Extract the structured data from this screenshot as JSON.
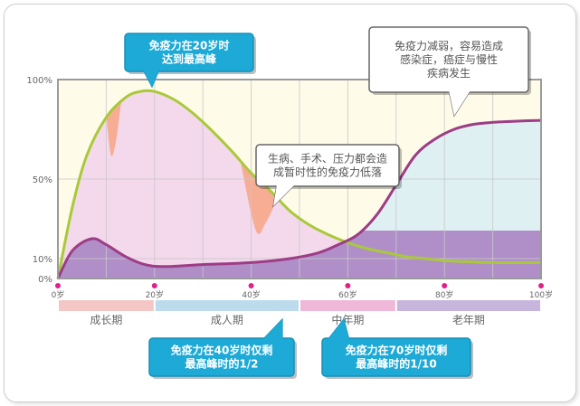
{
  "colors": {
    "green_curve": "#a9c93a",
    "purple_curve": "#9c3d86",
    "purple_fill": "#b08fc9",
    "pink_fill": "#f3d6ec",
    "teal_fill": "#dff0f2",
    "yellow_bg": "#fffbe9",
    "orange_spike": "#f6a989",
    "blue_callout": "#1eaad6",
    "grid": "#c9c9c9",
    "axis": "#888888"
  },
  "chart_data": {
    "type": "line",
    "x_ticks": [
      "0岁",
      "20岁",
      "40岁",
      "60岁",
      "80岁",
      "100岁"
    ],
    "y_ticks": [
      "0%",
      "10%",
      "50%",
      "100%"
    ],
    "xlim": [
      0,
      100
    ],
    "ylim": [
      0,
      100
    ],
    "series": [
      {
        "color_key": "green_curve",
        "x": [
          0,
          3,
          6,
          10,
          14,
          17,
          20,
          24,
          28,
          32,
          36,
          40,
          44,
          48,
          52,
          56,
          60,
          64,
          68,
          72,
          76,
          80,
          84,
          90,
          96,
          100
        ],
        "values": [
          0,
          36,
          62,
          81,
          91,
          94,
          94,
          90,
          83,
          74,
          64,
          53,
          44,
          34,
          27,
          22,
          18,
          15,
          13,
          11,
          10,
          9,
          8.5,
          8,
          8,
          8
        ]
      },
      {
        "color_key": "purple_curve",
        "x": [
          0,
          3,
          7,
          10,
          14,
          18,
          22,
          30,
          40,
          48,
          54,
          58,
          62,
          66,
          70,
          74,
          78,
          82,
          86,
          90,
          94,
          100
        ],
        "values": [
          0,
          14,
          20,
          17,
          11,
          7,
          6,
          7,
          8,
          10,
          13,
          17,
          22,
          32,
          47,
          62,
          70,
          75,
          77.5,
          78.5,
          79,
          79.5
        ]
      }
    ],
    "spikes": [
      {
        "x": [
          10,
          11,
          12,
          13
        ],
        "values": [
          82,
          62,
          69,
          87
        ]
      },
      {
        "x": [
          38,
          41,
          43,
          45
        ],
        "values": [
          56,
          24,
          28,
          38
        ]
      }
    ],
    "stages": [
      {
        "label": "成长期",
        "x_range": [
          0,
          20
        ],
        "color": "#f4c6c4"
      },
      {
        "label": "成人期",
        "x_range": [
          20,
          50
        ],
        "color": "#bcdced"
      },
      {
        "label": "中年期",
        "x_range": [
          50,
          70
        ],
        "color": "#efb8d9"
      },
      {
        "label": "老年期",
        "x_range": [
          70,
          100
        ],
        "color": "#c8b5de"
      }
    ],
    "annotations": {
      "peak": [
        "免疫力在20岁时",
        "达到最高峰"
      ],
      "decline": [
        "免疫力减弱，容易造成",
        "感染症，癌症与慢性",
        "疾病发生"
      ],
      "temporary": [
        "生病、手术、压力都会造",
        "成暂时性的免疫力低落"
      ],
      "age40": [
        "免疫力在40岁时仅剩",
        "最高峰时的1/2"
      ],
      "age70": [
        "免疫力在70岁时仅剩",
        "最高峰时的1/10"
      ]
    }
  }
}
